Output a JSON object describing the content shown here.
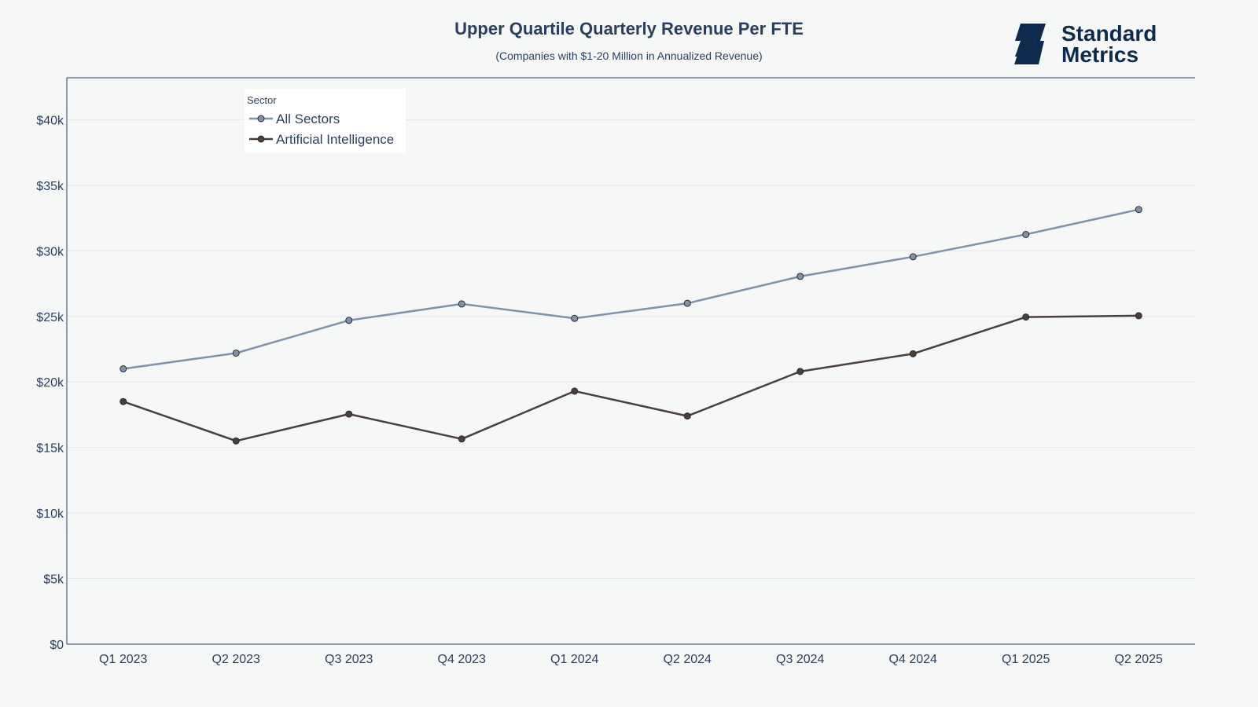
{
  "brand": {
    "line1": "Standard",
    "line2": "Metrics",
    "color": "#0e2a4d"
  },
  "chart_data": {
    "type": "line",
    "title": "Upper Quartile Quarterly Revenue Per FTE",
    "subtitle": "(Companies with $1-20 Million in Annualized Revenue)",
    "xlabel": "",
    "ylabel": "",
    "categories": [
      "Q1 2023",
      "Q2 2023",
      "Q3 2023",
      "Q4 2023",
      "Q1 2024",
      "Q2 2024",
      "Q3 2024",
      "Q4 2024",
      "Q1 2025",
      "Q2 2025"
    ],
    "ylim": [
      0,
      43200
    ],
    "yticks": [
      0,
      5000,
      10000,
      15000,
      20000,
      25000,
      30000,
      35000,
      40000
    ],
    "ytick_labels": [
      "$0",
      "$5k",
      "$10k",
      "$15k",
      "$20k",
      "$25k",
      "$30k",
      "$35k",
      "$40k"
    ],
    "grid": true,
    "legend": {
      "title": "Sector",
      "placement": "top-left"
    },
    "series": [
      {
        "name": "All Sectors",
        "color": "#7f93ac",
        "values": [
          21000,
          22200,
          24700,
          25950,
          24850,
          26000,
          28050,
          29550,
          31250,
          33150
        ]
      },
      {
        "name": "Artificial Intelligence",
        "color": "#4a403a",
        "values": [
          18500,
          15500,
          17550,
          15650,
          19300,
          17400,
          20800,
          22150,
          24950,
          25050
        ]
      }
    ]
  }
}
